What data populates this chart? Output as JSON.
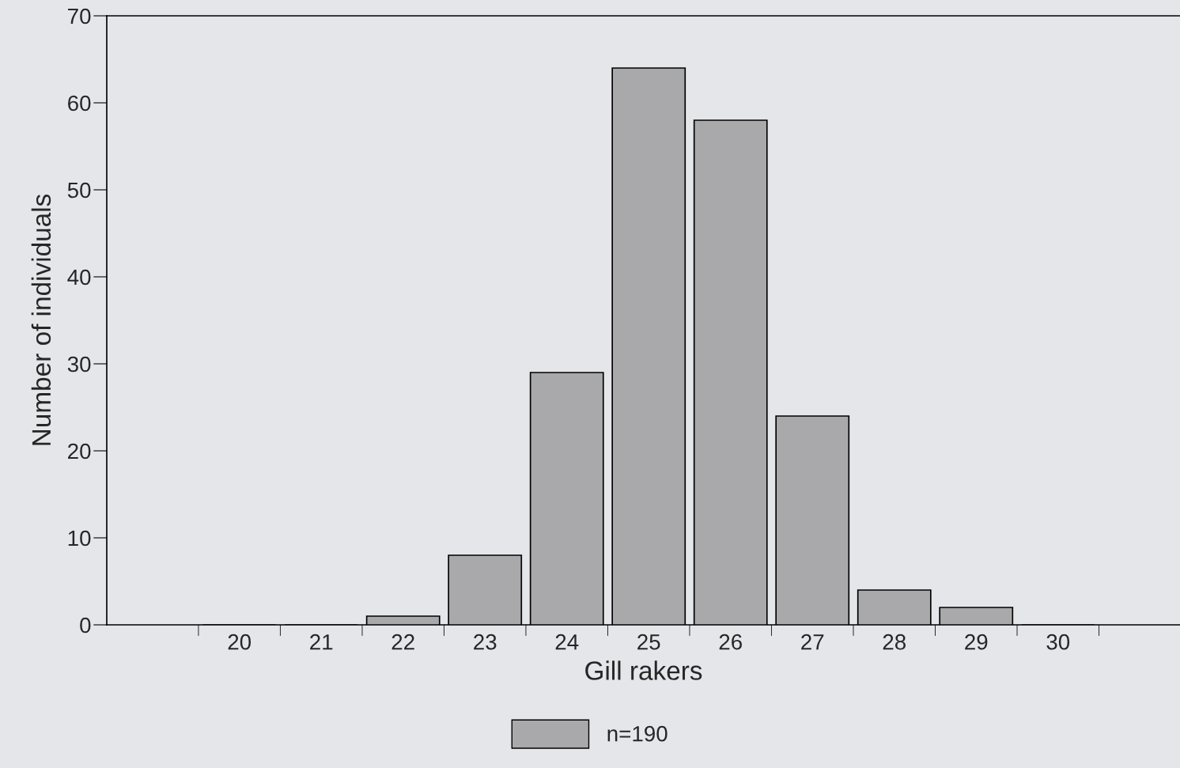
{
  "chart_data": {
    "type": "bar",
    "xlabel": "Gill rakers",
    "ylabel": "Number of individuals",
    "categories": [
      "20",
      "21",
      "22",
      "23",
      "24",
      "25",
      "26",
      "27",
      "28",
      "29",
      "30"
    ],
    "series": [
      {
        "name": "n=190",
        "color": "#a9a9ab",
        "values": [
          0,
          0,
          1,
          8,
          29,
          64,
          58,
          24,
          4,
          2,
          0
        ]
      }
    ],
    "ylim": [
      0,
      70
    ],
    "yticks": [
      0,
      10,
      20,
      30,
      40,
      50,
      60,
      70
    ],
    "grid": false,
    "legend": "bottom"
  }
}
